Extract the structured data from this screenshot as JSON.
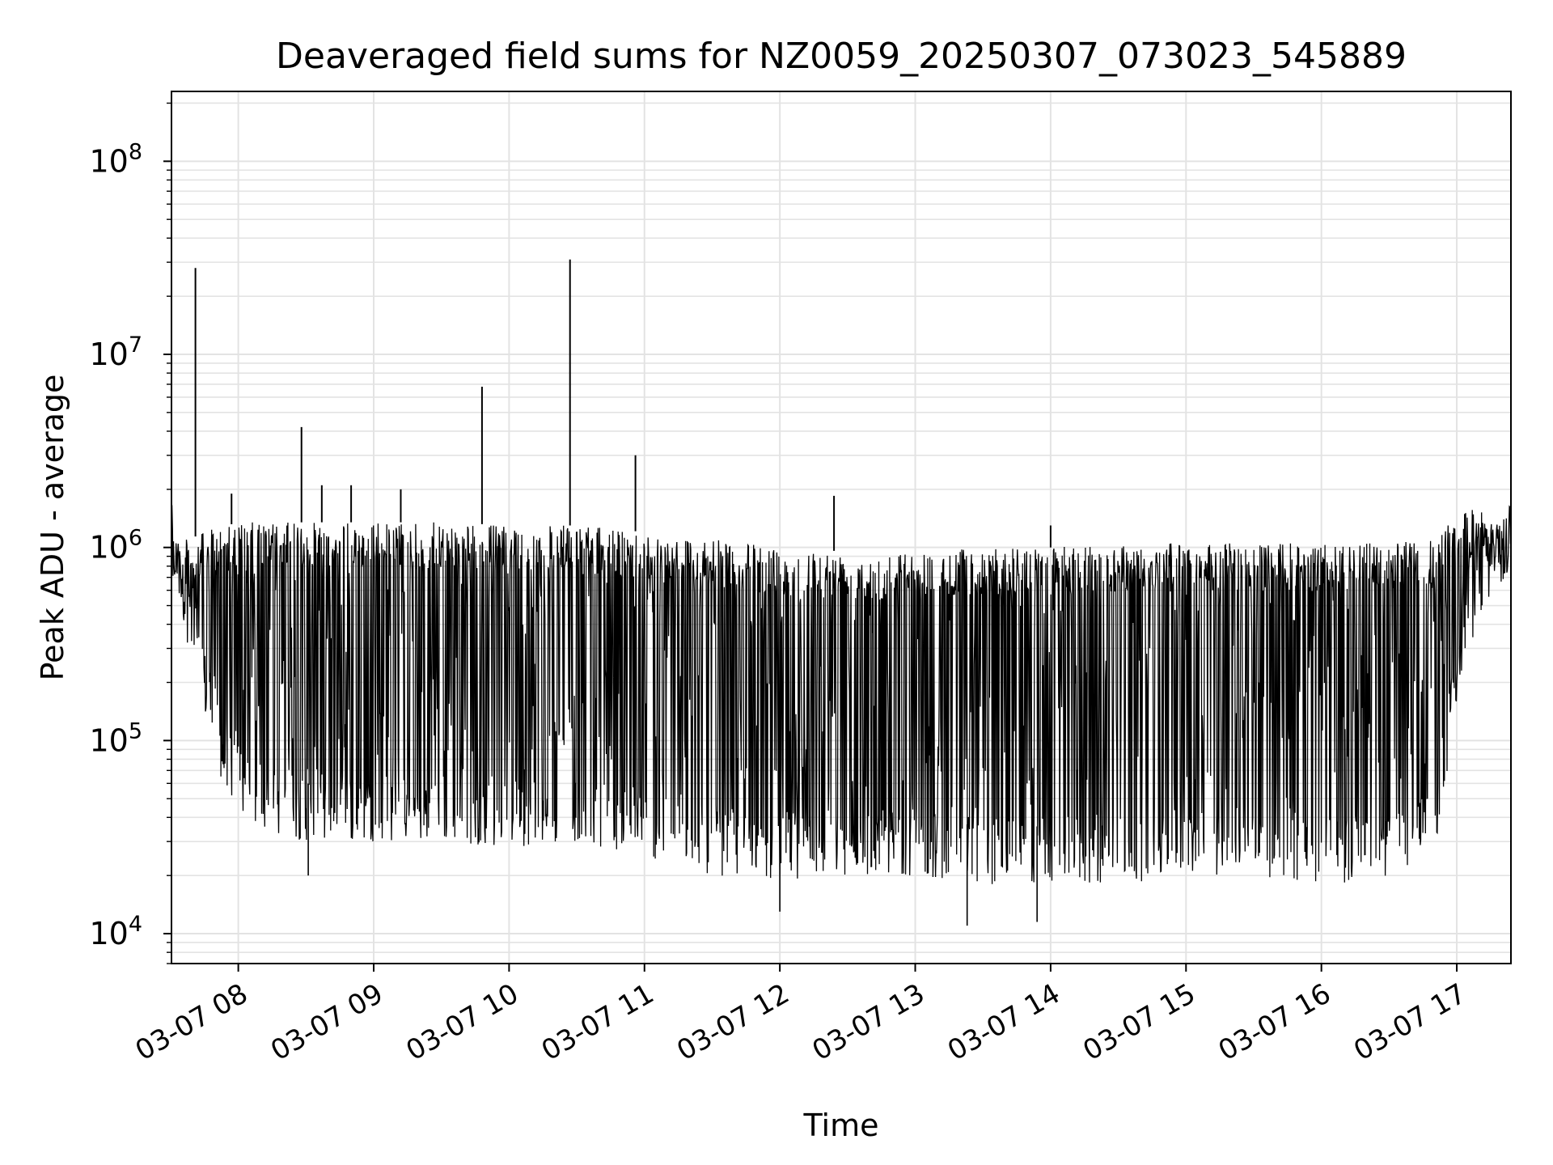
{
  "chart_data": {
    "type": "line",
    "title": "Deaveraged field sums for NZ0059_20250307_073023_545889",
    "xlabel": "Time",
    "ylabel": "Peak ADU - average",
    "yscale": "log",
    "ylim": [
      7000,
      230000000
    ],
    "xlim": [
      "2025-03-07 07:30:23",
      "2025-03-07 17:24:00"
    ],
    "grid": true,
    "legend": "none",
    "line_color": "#000000",
    "grid_color": "#e3e3e3",
    "x_ticks": [
      {
        "t": "2025-03-07 08:00",
        "label": "03-07 08"
      },
      {
        "t": "2025-03-07 09:00",
        "label": "03-07 09"
      },
      {
        "t": "2025-03-07 10:00",
        "label": "03-07 10"
      },
      {
        "t": "2025-03-07 11:00",
        "label": "03-07 11"
      },
      {
        "t": "2025-03-07 12:00",
        "label": "03-07 12"
      },
      {
        "t": "2025-03-07 13:00",
        "label": "03-07 13"
      },
      {
        "t": "2025-03-07 14:00",
        "label": "03-07 14"
      },
      {
        "t": "2025-03-07 15:00",
        "label": "03-07 15"
      },
      {
        "t": "2025-03-07 16:00",
        "label": "03-07 16"
      },
      {
        "t": "2025-03-07 17:00",
        "label": "03-07 17"
      }
    ],
    "y_ticks": [
      {
        "value": 10000,
        "base": "10",
        "exp": "4"
      },
      {
        "value": 100000,
        "base": "10",
        "exp": "5"
      },
      {
        "value": 1000000,
        "base": "10",
        "exp": "6"
      },
      {
        "value": 10000000,
        "base": "10",
        "exp": "7"
      },
      {
        "value": 100000000,
        "base": "10",
        "exp": "8"
      }
    ],
    "series": [
      {
        "description": "Dense time series of peak ADU minus average, oscillating rapidly between an upper band and lower dips; values approximate",
        "envelope": [
          {
            "t": "2025-03-07 07:30",
            "upper": 1200000,
            "lower": 800000
          },
          {
            "t": "2025-03-07 07:38",
            "upper": 1100000,
            "lower": 300000
          },
          {
            "t": "2025-03-07 07:52",
            "upper": 1300000,
            "lower": 60000
          },
          {
            "t": "2025-03-07 08:05",
            "upper": 1350000,
            "lower": 35000
          },
          {
            "t": "2025-03-07 08:30",
            "upper": 1350000,
            "lower": 30000
          },
          {
            "t": "2025-03-07 09:00",
            "upper": 1350000,
            "lower": 30000
          },
          {
            "t": "2025-03-07 09:30",
            "upper": 1350000,
            "lower": 30000
          },
          {
            "t": "2025-03-07 10:00",
            "upper": 1300000,
            "lower": 28000
          },
          {
            "t": "2025-03-07 10:30",
            "upper": 1300000,
            "lower": 30000
          },
          {
            "t": "2025-03-07 11:00",
            "upper": 1200000,
            "lower": 25000
          },
          {
            "t": "2025-03-07 11:30",
            "upper": 1100000,
            "lower": 20000
          },
          {
            "t": "2025-03-07 12:00",
            "upper": 1000000,
            "lower": 19000
          },
          {
            "t": "2025-03-07 12:30",
            "upper": 950000,
            "lower": 20000
          },
          {
            "t": "2025-03-07 13:00",
            "upper": 950000,
            "lower": 20000
          },
          {
            "t": "2025-03-07 13:30",
            "upper": 1000000,
            "lower": 18000
          },
          {
            "t": "2025-03-07 14:00",
            "upper": 1000000,
            "lower": 18000
          },
          {
            "t": "2025-03-07 14:30",
            "upper": 1050000,
            "lower": 18000
          },
          {
            "t": "2025-03-07 15:00",
            "upper": 1050000,
            "lower": 20000
          },
          {
            "t": "2025-03-07 15:30",
            "upper": 1050000,
            "lower": 20000
          },
          {
            "t": "2025-03-07 16:00",
            "upper": 1050000,
            "lower": 18000
          },
          {
            "t": "2025-03-07 16:30",
            "upper": 1050000,
            "lower": 18000
          },
          {
            "t": "2025-03-07 16:50",
            "upper": 1100000,
            "lower": 25000
          },
          {
            "t": "2025-03-07 17:00",
            "upper": 1500000,
            "lower": 150000
          },
          {
            "t": "2025-03-07 17:10",
            "upper": 1600000,
            "lower": 400000
          },
          {
            "t": "2025-03-07 17:24",
            "upper": 1200000,
            "lower": 800000
          }
        ],
        "spikes": [
          {
            "t": "2025-03-07 07:41",
            "value": 28000000
          },
          {
            "t": "2025-03-07 07:57",
            "value": 1900000
          },
          {
            "t": "2025-03-07 08:28",
            "value": 4200000
          },
          {
            "t": "2025-03-07 08:37",
            "value": 2100000
          },
          {
            "t": "2025-03-07 08:50",
            "value": 2100000
          },
          {
            "t": "2025-03-07 09:12",
            "value": 2000000
          },
          {
            "t": "2025-03-07 09:48",
            "value": 6800000
          },
          {
            "t": "2025-03-07 10:27",
            "value": 31000000
          },
          {
            "t": "2025-03-07 10:56",
            "value": 3000000
          },
          {
            "t": "2025-03-07 12:24",
            "value": 1850000
          },
          {
            "t": "2025-03-07 14:00",
            "value": 1300000
          }
        ],
        "minima": [
          {
            "t": "2025-03-07 08:31",
            "value": 20000
          },
          {
            "t": "2025-03-07 13:23",
            "value": 11000
          },
          {
            "t": "2025-03-07 13:54",
            "value": 11500
          },
          {
            "t": "2025-03-07 12:00",
            "value": 13000
          }
        ]
      }
    ]
  }
}
